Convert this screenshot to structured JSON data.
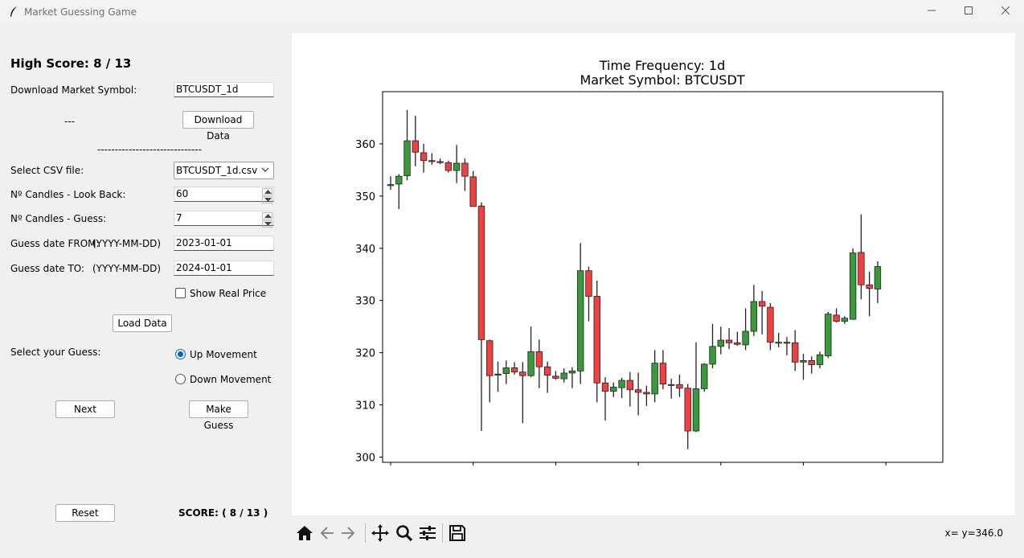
{
  "window": {
    "title": "Market Guessing Game",
    "controls": [
      "minimize",
      "maximize",
      "close"
    ]
  },
  "panel": {
    "high_score_label": "High Score:  8 / 13",
    "download_symbol_label": "Download Market Symbol:",
    "download_symbol_value": "BTCUSDT_1d",
    "download_status": "---",
    "download_button": "Download Data",
    "separator": "------------------------------",
    "csv_label": "Select CSV file:",
    "csv_value": "BTCUSDT_1d.csv",
    "lookback_label": "Nº Candles - Look Back:",
    "lookback_value": "60",
    "guess_candles_label": "Nº Candles - Guess:",
    "guess_candles_value": "7",
    "date_from_label": "Guess date FROM:",
    "date_from_format": "(YYYY-MM-DD)",
    "date_from_value": "2023-01-01",
    "date_to_label": "Guess date TO:",
    "date_to_format": "(YYYY-MM-DD)",
    "date_to_value": "2024-01-01",
    "show_real_price_label": "Show Real Price",
    "show_real_price_checked": false,
    "load_button": "Load Data",
    "guess_label": "Select your Guess:",
    "up_label": "Up Movement",
    "down_label": "Down Movement",
    "selected_guess": "up",
    "next_button": "Next",
    "make_guess_button": "Make Guess",
    "reset_button": "Reset",
    "score_text": "SCORE: ( 8 / 13 )"
  },
  "toolbar": {
    "icons": [
      "home-icon",
      "back-icon",
      "forward-icon",
      "pan-icon",
      "zoom-icon",
      "configure-icon",
      "save-icon"
    ],
    "coord_readout": "x= y=346.0"
  },
  "colors": {
    "up": "#3a9a3a",
    "down": "#f04040",
    "wick": "#222222"
  },
  "chart_data": {
    "type": "candlestick",
    "title": "Time Frequency: 1d",
    "subtitle": "Market Symbol: BTCUSDT",
    "ylim": [
      299,
      370
    ],
    "yticks": [
      300,
      310,
      320,
      330,
      340,
      350,
      360
    ],
    "x_tick_count": 7,
    "candles": [
      {
        "o": 352.0,
        "h": 353.8,
        "l": 351.2,
        "c": 352.2
      },
      {
        "o": 352.3,
        "h": 354.2,
        "l": 347.5,
        "c": 353.8
      },
      {
        "o": 353.9,
        "h": 366.5,
        "l": 353.0,
        "c": 360.6
      },
      {
        "o": 360.6,
        "h": 365.4,
        "l": 355.7,
        "c": 358.4
      },
      {
        "o": 358.3,
        "h": 360.0,
        "l": 354.5,
        "c": 356.8
      },
      {
        "o": 356.8,
        "h": 358.2,
        "l": 356.0,
        "c": 356.6
      },
      {
        "o": 356.6,
        "h": 357.2,
        "l": 356.1,
        "c": 356.5
      },
      {
        "o": 356.4,
        "h": 356.8,
        "l": 354.5,
        "c": 354.9
      },
      {
        "o": 354.9,
        "h": 359.8,
        "l": 352.5,
        "c": 356.3
      },
      {
        "o": 356.3,
        "h": 357.2,
        "l": 351.0,
        "c": 353.8
      },
      {
        "o": 353.7,
        "h": 354.8,
        "l": 348.0,
        "c": 348.0
      },
      {
        "o": 348.1,
        "h": 348.8,
        "l": 305.0,
        "c": 322.5
      },
      {
        "o": 322.3,
        "h": 322.5,
        "l": 310.5,
        "c": 315.6
      },
      {
        "o": 315.7,
        "h": 318.3,
        "l": 312.5,
        "c": 315.9
      },
      {
        "o": 316.0,
        "h": 318.5,
        "l": 314.0,
        "c": 317.1
      },
      {
        "o": 317.1,
        "h": 318.2,
        "l": 315.8,
        "c": 316.3
      },
      {
        "o": 316.3,
        "h": 318.2,
        "l": 306.5,
        "c": 315.6
      },
      {
        "o": 315.6,
        "h": 325.0,
        "l": 315.3,
        "c": 320.2
      },
      {
        "o": 320.2,
        "h": 322.5,
        "l": 313.2,
        "c": 317.3
      },
      {
        "o": 317.3,
        "h": 318.3,
        "l": 312.3,
        "c": 315.7
      },
      {
        "o": 315.5,
        "h": 316.5,
        "l": 314.8,
        "c": 315.1
      },
      {
        "o": 315.0,
        "h": 317.0,
        "l": 314.3,
        "c": 316.1
      },
      {
        "o": 316.1,
        "h": 317.2,
        "l": 313.2,
        "c": 316.5
      },
      {
        "o": 316.5,
        "h": 341.0,
        "l": 314.0,
        "c": 335.7
      },
      {
        "o": 335.7,
        "h": 336.5,
        "l": 326.0,
        "c": 330.8
      },
      {
        "o": 330.8,
        "h": 333.8,
        "l": 310.5,
        "c": 314.2
      },
      {
        "o": 314.2,
        "h": 315.3,
        "l": 307.0,
        "c": 312.6
      },
      {
        "o": 312.6,
        "h": 314.3,
        "l": 311.5,
        "c": 313.4
      },
      {
        "o": 313.3,
        "h": 315.2,
        "l": 311.3,
        "c": 314.7
      },
      {
        "o": 314.7,
        "h": 316.3,
        "l": 309.7,
        "c": 312.9
      },
      {
        "o": 312.9,
        "h": 316.2,
        "l": 308.0,
        "c": 312.4
      },
      {
        "o": 312.4,
        "h": 313.7,
        "l": 309.8,
        "c": 312.1
      },
      {
        "o": 312.1,
        "h": 320.5,
        "l": 310.5,
        "c": 318.0
      },
      {
        "o": 318.0,
        "h": 320.5,
        "l": 313.0,
        "c": 314.0
      },
      {
        "o": 313.9,
        "h": 315.0,
        "l": 311.2,
        "c": 313.9
      },
      {
        "o": 313.9,
        "h": 315.8,
        "l": 311.5,
        "c": 313.2
      },
      {
        "o": 313.2,
        "h": 314.0,
        "l": 301.5,
        "c": 305.0
      },
      {
        "o": 305.0,
        "h": 322.0,
        "l": 304.8,
        "c": 313.1
      },
      {
        "o": 313.1,
        "h": 318.0,
        "l": 312.5,
        "c": 317.8
      },
      {
        "o": 317.8,
        "h": 325.5,
        "l": 317.0,
        "c": 321.2
      },
      {
        "o": 321.2,
        "h": 325.0,
        "l": 319.7,
        "c": 322.4
      },
      {
        "o": 322.4,
        "h": 324.7,
        "l": 320.7,
        "c": 321.9
      },
      {
        "o": 321.9,
        "h": 324.0,
        "l": 321.3,
        "c": 321.6
      },
      {
        "o": 321.5,
        "h": 328.5,
        "l": 320.5,
        "c": 324.1
      },
      {
        "o": 324.1,
        "h": 333.0,
        "l": 323.2,
        "c": 329.8
      },
      {
        "o": 329.8,
        "h": 331.8,
        "l": 323.5,
        "c": 328.9
      },
      {
        "o": 328.7,
        "h": 329.5,
        "l": 320.5,
        "c": 322.0
      },
      {
        "o": 322.0,
        "h": 323.8,
        "l": 321.0,
        "c": 322.0
      },
      {
        "o": 322.0,
        "h": 323.0,
        "l": 319.5,
        "c": 321.8
      },
      {
        "o": 321.9,
        "h": 324.3,
        "l": 316.5,
        "c": 318.2
      },
      {
        "o": 318.2,
        "h": 319.8,
        "l": 314.8,
        "c": 318.5
      },
      {
        "o": 318.5,
        "h": 319.3,
        "l": 316.0,
        "c": 317.7
      },
      {
        "o": 317.7,
        "h": 320.2,
        "l": 317.0,
        "c": 319.6
      },
      {
        "o": 319.4,
        "h": 327.8,
        "l": 319.0,
        "c": 327.4
      },
      {
        "o": 327.2,
        "h": 328.5,
        "l": 325.8,
        "c": 326.0
      },
      {
        "o": 326.0,
        "h": 327.0,
        "l": 325.5,
        "c": 326.6
      },
      {
        "o": 326.4,
        "h": 340.0,
        "l": 326.3,
        "c": 339.1
      },
      {
        "o": 339.2,
        "h": 346.5,
        "l": 330.2,
        "c": 333.0
      },
      {
        "o": 333.0,
        "h": 335.5,
        "l": 327.0,
        "c": 332.3
      },
      {
        "o": 332.2,
        "h": 337.5,
        "l": 329.5,
        "c": 336.5
      }
    ]
  }
}
